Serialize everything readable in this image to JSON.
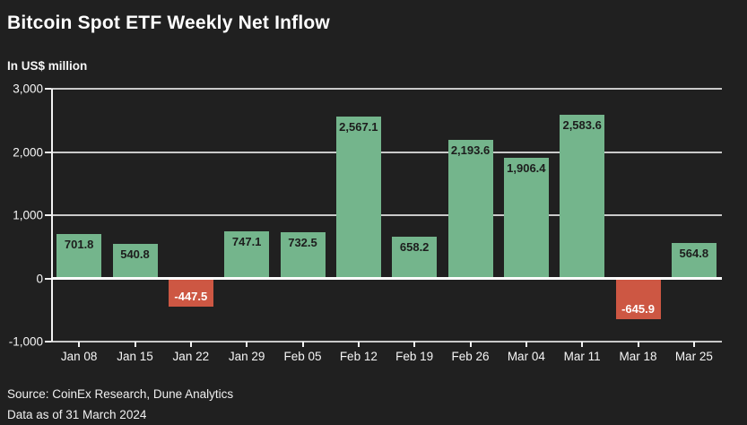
{
  "chart_data": {
    "type": "bar",
    "title": "Bitcoin Spot ETF Weekly Net Inflow",
    "subtitle": "In US$ million",
    "categories": [
      "Jan 08",
      "Jan 15",
      "Jan 22",
      "Jan 29",
      "Feb 05",
      "Feb 12",
      "Feb 19",
      "Feb 26",
      "Mar 04",
      "Mar 11",
      "Mar 18",
      "Mar 25"
    ],
    "values": [
      701.8,
      540.8,
      -447.5,
      747.1,
      732.5,
      2567.1,
      658.2,
      2193.6,
      1906.4,
      2583.6,
      -645.9,
      564.8
    ],
    "value_labels": [
      "701.8",
      "540.8",
      "-447.5",
      "747.1",
      "732.5",
      "2,567.1",
      "658.2",
      "2,193.6",
      "1,906.4",
      "2,583.6",
      "-645.9",
      "564.8"
    ],
    "ylim": [
      -1000,
      3000
    ],
    "ytick_values": [
      3000,
      2000,
      1000,
      0,
      -1000
    ],
    "ytick_labels": [
      "3,000",
      "2,000",
      "1,000",
      "0",
      "-1,000"
    ],
    "grid": "horizontal",
    "legend": "none",
    "colors": {
      "positive_bar": "#74b58c",
      "negative_bar": "#cd5743",
      "background": "#202020",
      "gridline": "#c9c9c9",
      "zero_line": "#ffffff",
      "label_on_positive": "#1d1d1d",
      "label_on_negative": "#ffffff"
    }
  },
  "footer": {
    "source_line": "Source: CoinEx Research, Dune Analytics",
    "date_line": "Data as of 31 March 2024"
  }
}
